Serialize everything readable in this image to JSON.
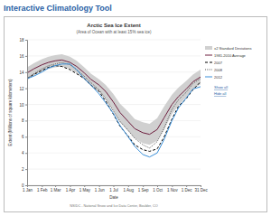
{
  "chart_data": {
    "type": "line",
    "header": "Interactive Climatology Tool",
    "title": "Arctic Sea Ice Extent",
    "subtitle": "(Area of Ocean with at least 15% sea ice)",
    "x_label": "Date",
    "y_label": "Extent (Millions of square kilometers)",
    "source": "NSIDC - National Snow and Ice Data Center, Boulder, CO",
    "legend_links": [
      "Show all",
      "Hide all"
    ],
    "x": [
      1,
      15,
      32,
      46,
      60,
      74,
      91,
      105,
      121,
      135,
      152,
      166,
      182,
      196,
      213,
      227,
      244,
      258,
      274,
      288,
      305,
      319,
      335,
      349,
      365
    ],
    "xlim": [
      1,
      365
    ],
    "xticks": [
      {
        "value": 1,
        "label": "1 Jan"
      },
      {
        "value": 32,
        "label": "1 Feb"
      },
      {
        "value": 60,
        "label": "1 Mar"
      },
      {
        "value": 91,
        "label": "1 Apr"
      },
      {
        "value": 121,
        "label": "1 May"
      },
      {
        "value": 152,
        "label": "1 Jun"
      },
      {
        "value": 182,
        "label": "1 Jul"
      },
      {
        "value": 213,
        "label": "1 Aug"
      },
      {
        "value": 244,
        "label": "1 Sep"
      },
      {
        "value": 274,
        "label": "1 Oct"
      },
      {
        "value": 305,
        "label": "1 Nov"
      },
      {
        "value": 335,
        "label": "1 Dec"
      },
      {
        "value": 365,
        "label": "31 Dec"
      }
    ],
    "ylim": [
      0,
      18
    ],
    "yticks": [
      0,
      2,
      4,
      6,
      8,
      10,
      12,
      14,
      16,
      18
    ],
    "grid": true,
    "legend": "right",
    "series": [
      {
        "name": "±2 Standard Deviations",
        "type": "band",
        "color": "#d0d0d0",
        "lower": [
          13.0,
          13.6,
          14.1,
          14.4,
          14.6,
          14.7,
          14.4,
          13.9,
          13.1,
          12.3,
          11.6,
          10.7,
          9.2,
          7.8,
          6.7,
          5.8,
          5.2,
          5.0,
          5.5,
          6.8,
          8.8,
          9.9,
          10.9,
          11.9,
          12.5
        ],
        "upper": [
          14.6,
          15.1,
          15.6,
          15.9,
          16.1,
          16.2,
          15.9,
          15.4,
          14.6,
          13.8,
          13.1,
          12.4,
          11.3,
          10.1,
          9.1,
          8.2,
          7.8,
          7.6,
          8.3,
          9.7,
          11.2,
          12.1,
          12.9,
          13.7,
          14.3
        ]
      },
      {
        "name": "1981-2010 Average",
        "type": "line",
        "color": "#6e1f3f",
        "line_style": "solid",
        "values": [
          13.9,
          14.4,
          14.9,
          15.2,
          15.4,
          15.5,
          15.2,
          14.7,
          13.9,
          13.1,
          12.4,
          11.6,
          10.3,
          9.0,
          7.9,
          7.0,
          6.5,
          6.3,
          6.9,
          8.3,
          10.0,
          11.0,
          11.9,
          12.8,
          13.4
        ]
      },
      {
        "name": "2007",
        "type": "line",
        "color": "#000000",
        "line_style": "dashed",
        "values": [
          13.2,
          13.7,
          14.2,
          14.6,
          14.8,
          14.7,
          14.3,
          13.8,
          13.2,
          12.4,
          11.6,
          10.4,
          8.8,
          7.3,
          6.1,
          5.0,
          4.4,
          4.2,
          4.5,
          5.9,
          8.2,
          9.8,
          10.7,
          11.8,
          12.8
        ]
      },
      {
        "name": "2008",
        "type": "line",
        "color": "#555555",
        "line_style": "dotted",
        "values": [
          13.2,
          13.8,
          14.4,
          14.8,
          15.0,
          15.2,
          14.9,
          14.3,
          13.5,
          12.7,
          11.8,
          10.7,
          9.2,
          7.9,
          6.8,
          5.8,
          5.0,
          4.6,
          5.4,
          7.0,
          9.4,
          10.6,
          11.5,
          12.6,
          13.2
        ]
      },
      {
        "name": "2012",
        "type": "line",
        "color": "#3a8fd9",
        "line_style": "solid",
        "values": [
          13.2,
          13.5,
          14.0,
          14.5,
          14.8,
          15.0,
          15.0,
          14.3,
          13.2,
          12.4,
          11.3,
          10.2,
          8.9,
          7.4,
          6.0,
          4.8,
          3.8,
          3.5,
          4.0,
          5.6,
          8.0,
          9.6,
          10.8,
          11.9,
          12.2
        ]
      }
    ]
  }
}
